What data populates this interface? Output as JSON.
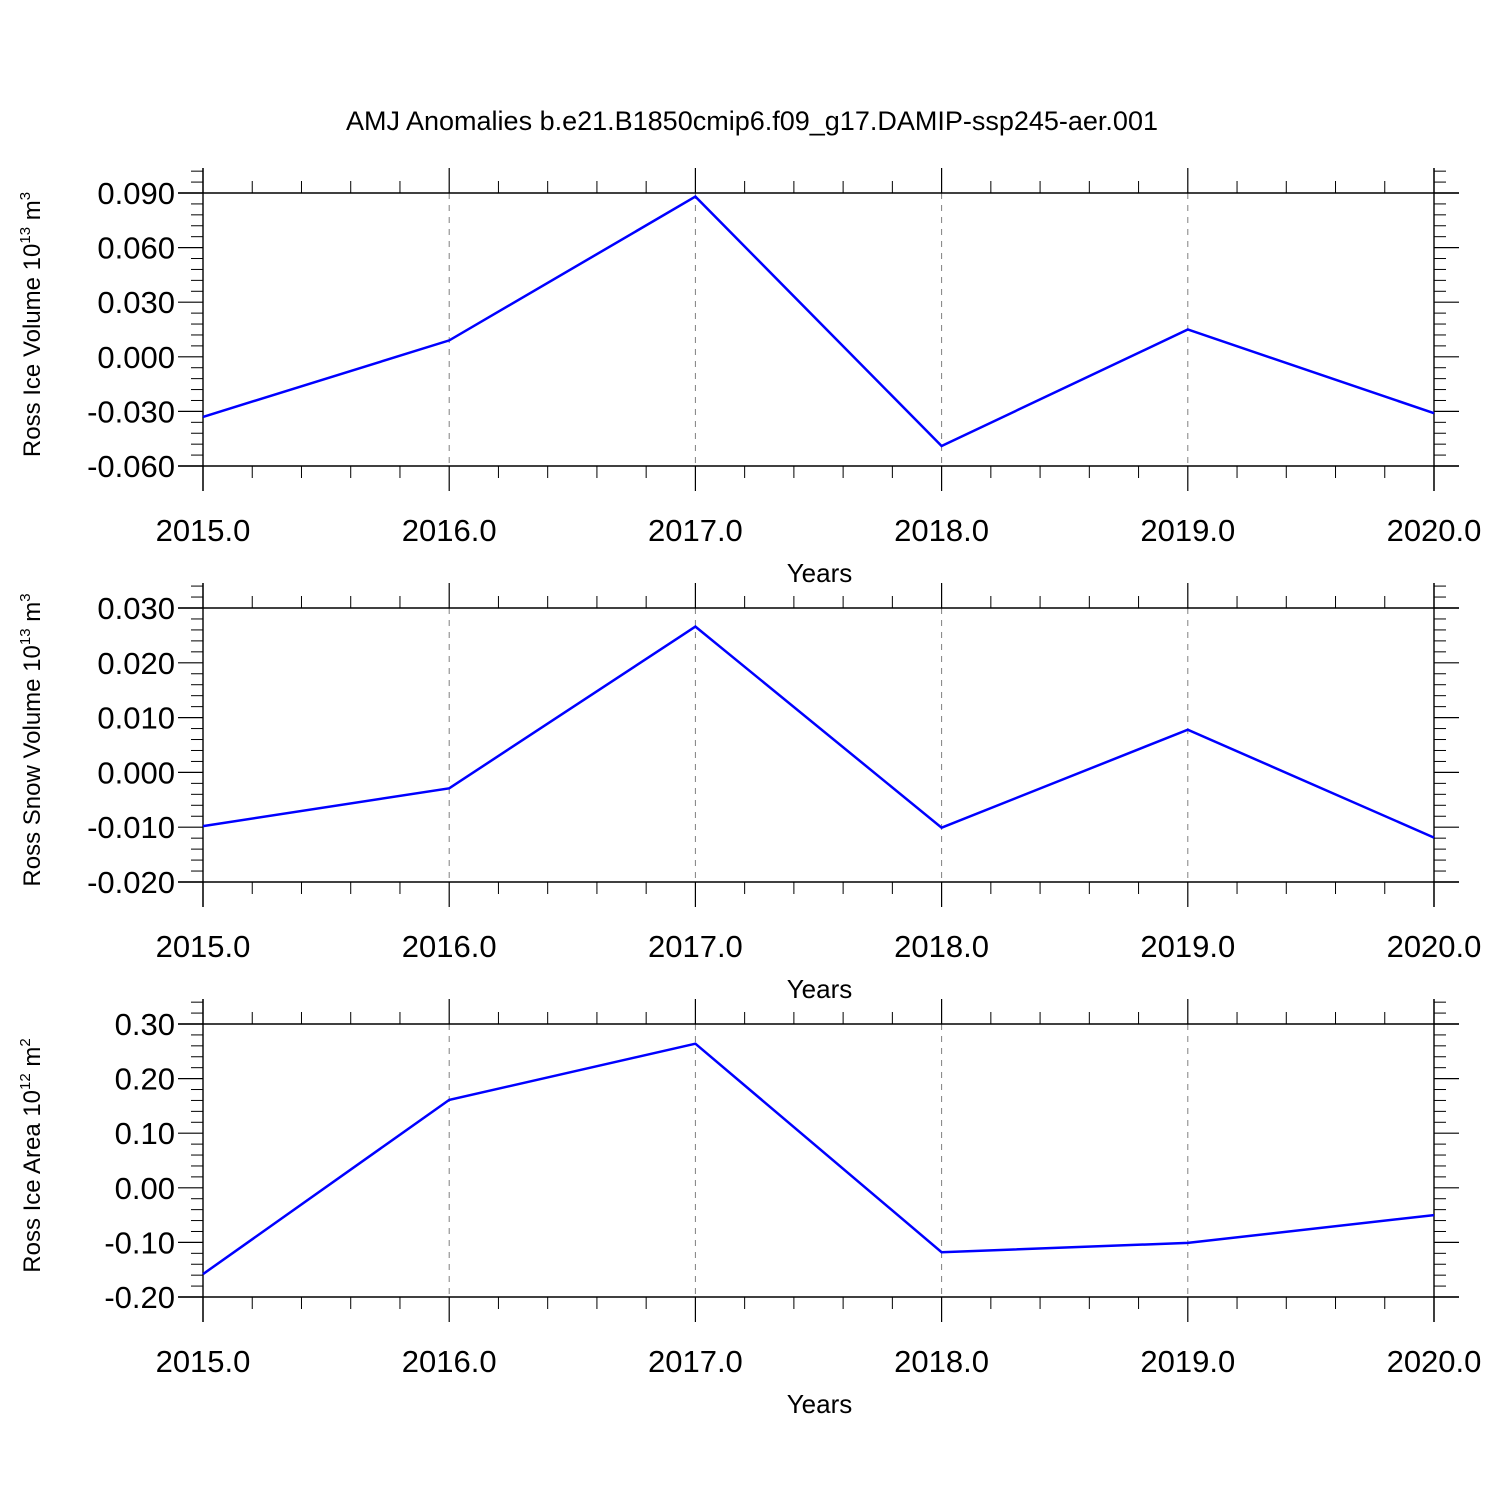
{
  "figure_title": "AMJ Anomalies b.e21.B1850cmip6.f09_g17.DAMIP-ssp245-aer.001",
  "colors": {
    "line": "#0000ff",
    "axis": "#000000",
    "grid": "#808080"
  },
  "chart_data": [
    {
      "type": "line",
      "ylabel": {
        "text": "Ross Ice Volume 10",
        "exponent": "13",
        "unit": " m",
        "unit_exponent": "3"
      },
      "xlabel": "Years",
      "xlim": [
        2015,
        2020
      ],
      "ylim": [
        -0.06,
        0.09
      ],
      "yticks": [
        -0.06,
        -0.03,
        0.0,
        0.03,
        0.06,
        0.09
      ],
      "ytick_labels": [
        "-0.060",
        "-0.030",
        "0.000",
        "0.030",
        "0.060",
        "0.090"
      ],
      "xticks": [
        2015,
        2016,
        2017,
        2018,
        2019,
        2020
      ],
      "xtick_labels": [
        "2015.0",
        "2016.0",
        "2017.0",
        "2018.0",
        "2019.0",
        "2020.0"
      ],
      "grid": "vertical dashed at major x ticks",
      "series": [
        {
          "x": [
            2015,
            2016,
            2017,
            2018,
            2019,
            2020
          ],
          "y": [
            -0.033,
            0.009,
            0.088,
            -0.049,
            0.015,
            -0.031
          ]
        }
      ]
    },
    {
      "type": "line",
      "ylabel": {
        "text": "Ross Snow Volume 10",
        "exponent": "13",
        "unit": " m",
        "unit_exponent": "3"
      },
      "xlabel": "Years",
      "xlim": [
        2015,
        2020
      ],
      "ylim": [
        -0.02,
        0.03
      ],
      "yticks": [
        -0.02,
        -0.01,
        0.0,
        0.01,
        0.02,
        0.03
      ],
      "ytick_labels": [
        "-0.020",
        "-0.010",
        "0.000",
        "0.010",
        "0.020",
        "0.030"
      ],
      "xticks": [
        2015,
        2016,
        2017,
        2018,
        2019,
        2020
      ],
      "xtick_labels": [
        "2015.0",
        "2016.0",
        "2017.0",
        "2018.0",
        "2019.0",
        "2020.0"
      ],
      "grid": "vertical dashed at major x ticks",
      "series": [
        {
          "x": [
            2015,
            2016,
            2017,
            2018,
            2019,
            2020
          ],
          "y": [
            -0.0098,
            -0.0029,
            0.0266,
            -0.0101,
            0.0078,
            -0.0119
          ]
        }
      ]
    },
    {
      "type": "line",
      "ylabel": {
        "text": "Ross Ice Area 10",
        "exponent": "12",
        "unit": " m",
        "unit_exponent": "2"
      },
      "xlabel": "Years",
      "xlim": [
        2015,
        2020
      ],
      "ylim": [
        -0.2,
        0.3
      ],
      "yticks": [
        -0.2,
        -0.1,
        0.0,
        0.1,
        0.2,
        0.3
      ],
      "ytick_labels": [
        "-0.20",
        "-0.10",
        "0.00",
        "0.10",
        "0.20",
        "0.30"
      ],
      "xticks": [
        2015,
        2016,
        2017,
        2018,
        2019,
        2020
      ],
      "xtick_labels": [
        "2015.0",
        "2016.0",
        "2017.0",
        "2018.0",
        "2019.0",
        "2020.0"
      ],
      "grid": "vertical dashed at major x ticks",
      "series": [
        {
          "x": [
            2015,
            2016,
            2017,
            2018,
            2019,
            2020
          ],
          "y": [
            -0.158,
            0.161,
            0.264,
            -0.118,
            -0.101,
            -0.05
          ]
        }
      ]
    }
  ]
}
